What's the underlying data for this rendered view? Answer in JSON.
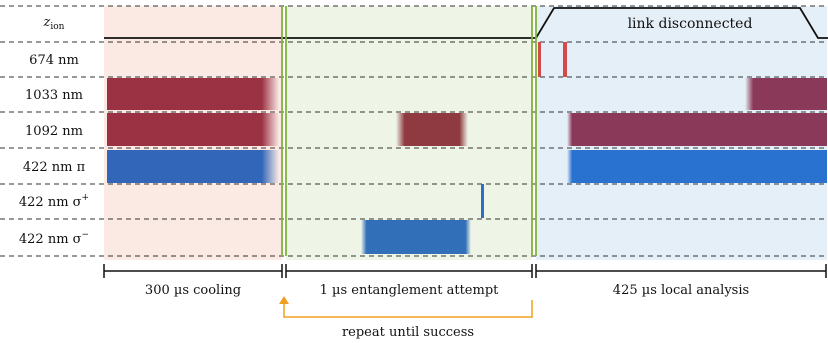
{
  "diagram": {
    "rows": [
      {
        "id": "zion",
        "label_main": "z",
        "label_sub": "ion",
        "label_sup": ""
      },
      {
        "id": "674",
        "label_main": "674 nm",
        "label_sub": "",
        "label_sup": ""
      },
      {
        "id": "1033",
        "label_main": "1033 nm",
        "label_sub": "",
        "label_sup": ""
      },
      {
        "id": "1092",
        "label_main": "1092 nm",
        "label_sub": "",
        "label_sup": ""
      },
      {
        "id": "422pi",
        "label_main": "422 nm π",
        "label_sub": "",
        "label_sup": ""
      },
      {
        "id": "422sp",
        "label_main": "422 nm σ",
        "label_sub": "",
        "label_sup": "+"
      },
      {
        "id": "422sm",
        "label_main": "422 nm σ",
        "label_sub": "",
        "label_sup": "−"
      }
    ],
    "phases": [
      {
        "id": "cooling",
        "label": "300 µs cooling",
        "color": "#fae8e3"
      },
      {
        "id": "entangle",
        "label": "1 µs entanglement attempt",
        "color": "#eef4e6"
      },
      {
        "id": "analysis",
        "label": "425 µs local analysis",
        "color": "#e6f0f8"
      }
    ],
    "banner": "link disconnected",
    "repeat_label": "repeat until success",
    "colors": {
      "red_pulse": "#993344",
      "dark_red_pulse": "#8b3a4b",
      "blue_pulse": "#2f6fc2",
      "repeat_arrow": "#f0a020",
      "separator": "#7fb33c"
    }
  }
}
